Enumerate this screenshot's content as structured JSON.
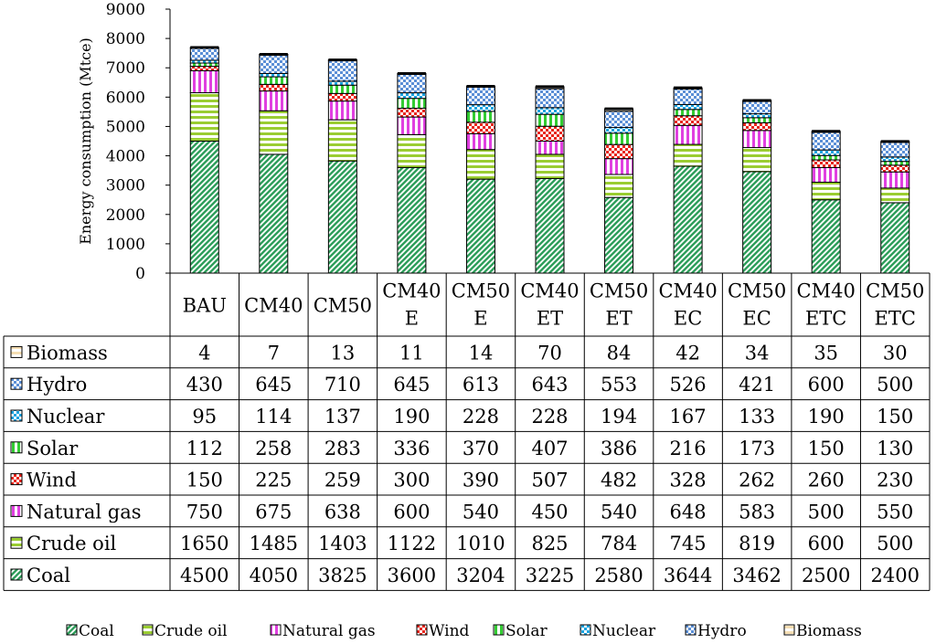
{
  "chart_data": {
    "type": "bar",
    "stacked": true,
    "title": "",
    "xlabel": "",
    "ylabel": "Energy consumption (Mtce)",
    "ylim": [
      0,
      9000
    ],
    "yticks": [
      0,
      1000,
      2000,
      3000,
      4000,
      5000,
      6000,
      7000,
      8000,
      9000
    ],
    "grid": false,
    "legend_position": "bottom",
    "categories": [
      [
        "BAU"
      ],
      [
        "CM40"
      ],
      [
        "CM50"
      ],
      [
        "CM40",
        "E"
      ],
      [
        "CM50",
        "E"
      ],
      [
        "CM40",
        "ET"
      ],
      [
        "CM50",
        "ET"
      ],
      [
        "CM40",
        "EC"
      ],
      [
        "CM50",
        "EC"
      ],
      [
        "CM40",
        "ETC"
      ],
      [
        "CM50",
        "ETC"
      ]
    ],
    "series": [
      {
        "name": "Coal",
        "color": "#2e9e5b",
        "values": [
          4500,
          4050,
          3825,
          3600,
          3204,
          3225,
          2580,
          3644,
          3462,
          2500,
          2400
        ]
      },
      {
        "name": "Crude oil",
        "color": "#9acd32",
        "values": [
          1650,
          1485,
          1403,
          1122,
          1010,
          825,
          784,
          745,
          819,
          600,
          500
        ]
      },
      {
        "name": "Natural gas",
        "color": "#e040e0",
        "values": [
          750,
          675,
          638,
          600,
          540,
          450,
          540,
          648,
          583,
          500,
          550
        ]
      },
      {
        "name": "Wind",
        "color": "#e8261c",
        "values": [
          150,
          225,
          259,
          300,
          390,
          507,
          482,
          328,
          262,
          260,
          230
        ]
      },
      {
        "name": "Solar",
        "color": "#33cc33",
        "values": [
          112,
          258,
          283,
          336,
          370,
          407,
          386,
          216,
          173,
          150,
          130
        ]
      },
      {
        "name": "Nuclear",
        "color": "#1aa3e0",
        "values": [
          95,
          114,
          137,
          190,
          228,
          228,
          194,
          167,
          133,
          190,
          150
        ]
      },
      {
        "name": "Hydro",
        "color": "#5b8fd6",
        "values": [
          430,
          645,
          710,
          645,
          613,
          643,
          553,
          526,
          421,
          600,
          500
        ]
      },
      {
        "name": "Biomass",
        "color": "#f5deb3",
        "values": [
          4,
          7,
          13,
          11,
          14,
          70,
          84,
          42,
          34,
          35,
          30
        ]
      }
    ]
  }
}
